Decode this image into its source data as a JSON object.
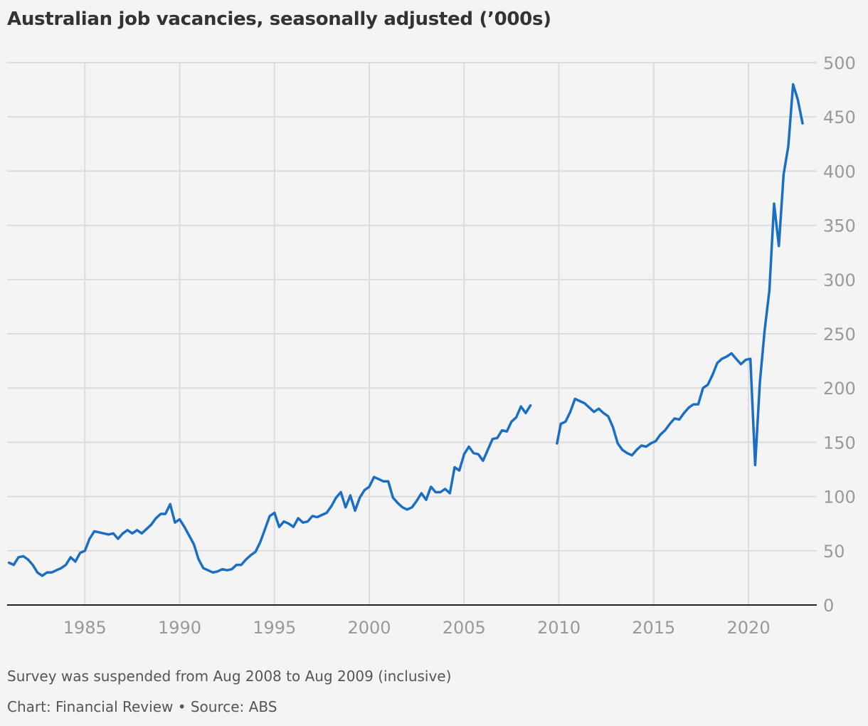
{
  "chart_data": {
    "type": "line",
    "title": "Australian job vacancies, seasonally adjusted (’000s)",
    "ylim": [
      0,
      500
    ],
    "xlim": [
      1980.9,
      2023.6
    ],
    "y_ticks": [
      "0",
      "50",
      "100",
      "150",
      "200",
      "250",
      "300",
      "350",
      "400",
      "450",
      "500"
    ],
    "x_ticks": [
      "1985",
      "1990",
      "1995",
      "2000",
      "2005",
      "2010",
      "2015",
      "2020"
    ],
    "grid": true,
    "series": [
      {
        "color": "#1a6fc4",
        "segments": [
          [
            [
              1981.0,
              39
            ],
            [
              1981.25,
              37
            ],
            [
              1981.5,
              44
            ],
            [
              1981.75,
              45
            ],
            [
              1982.0,
              42
            ],
            [
              1982.25,
              37
            ],
            [
              1982.5,
              30
            ],
            [
              1982.75,
              27
            ],
            [
              1983.0,
              30
            ],
            [
              1983.25,
              30
            ],
            [
              1983.5,
              32
            ],
            [
              1983.75,
              34
            ],
            [
              1984.0,
              37
            ],
            [
              1984.25,
              44
            ],
            [
              1984.5,
              40
            ],
            [
              1984.75,
              48
            ],
            [
              1985.0,
              50
            ],
            [
              1985.25,
              61
            ],
            [
              1985.5,
              68
            ],
            [
              1985.75,
              67
            ],
            [
              1986.0,
              66
            ],
            [
              1986.25,
              65
            ],
            [
              1986.5,
              66
            ],
            [
              1986.75,
              61
            ],
            [
              1987.0,
              66
            ],
            [
              1987.25,
              69
            ],
            [
              1987.5,
              66
            ],
            [
              1987.75,
              69
            ],
            [
              1988.0,
              66
            ],
            [
              1988.25,
              70
            ],
            [
              1988.5,
              74
            ],
            [
              1988.75,
              80
            ],
            [
              1989.0,
              84
            ],
            [
              1989.25,
              84
            ],
            [
              1989.5,
              93
            ],
            [
              1989.75,
              76
            ],
            [
              1990.0,
              79
            ],
            [
              1990.25,
              72
            ],
            [
              1990.5,
              64
            ],
            [
              1990.75,
              56
            ],
            [
              1991.0,
              42
            ],
            [
              1991.25,
              34
            ],
            [
              1991.5,
              32
            ],
            [
              1991.75,
              30
            ],
            [
              1992.0,
              31
            ],
            [
              1992.25,
              33
            ],
            [
              1992.5,
              32
            ],
            [
              1992.75,
              33
            ],
            [
              1993.0,
              37
            ],
            [
              1993.25,
              37
            ],
            [
              1993.5,
              42
            ],
            [
              1993.75,
              46
            ],
            [
              1994.0,
              49
            ],
            [
              1994.25,
              58
            ],
            [
              1994.5,
              70
            ],
            [
              1994.75,
              82
            ],
            [
              1995.0,
              85
            ],
            [
              1995.25,
              72
            ],
            [
              1995.5,
              77
            ],
            [
              1995.75,
              75
            ],
            [
              1996.0,
              72
            ],
            [
              1996.25,
              80
            ],
            [
              1996.5,
              76
            ],
            [
              1996.75,
              77
            ],
            [
              1997.0,
              82
            ],
            [
              1997.25,
              81
            ],
            [
              1997.5,
              83
            ],
            [
              1997.75,
              85
            ],
            [
              1998.0,
              91
            ],
            [
              1998.25,
              99
            ],
            [
              1998.5,
              104
            ],
            [
              1998.75,
              90
            ],
            [
              1999.0,
              101
            ],
            [
              1999.25,
              87
            ],
            [
              1999.5,
              99
            ],
            [
              1999.75,
              106
            ],
            [
              2000.0,
              109
            ],
            [
              2000.25,
              118
            ],
            [
              2000.5,
              116
            ],
            [
              2000.75,
              114
            ],
            [
              2001.0,
              114
            ],
            [
              2001.25,
              99
            ],
            [
              2001.5,
              94
            ],
            [
              2001.75,
              90
            ],
            [
              2002.0,
              88
            ],
            [
              2002.25,
              90
            ],
            [
              2002.5,
              96
            ],
            [
              2002.75,
              103
            ],
            [
              2003.0,
              97
            ],
            [
              2003.25,
              109
            ],
            [
              2003.5,
              104
            ],
            [
              2003.75,
              104
            ],
            [
              2004.0,
              107
            ],
            [
              2004.25,
              103
            ],
            [
              2004.5,
              127
            ],
            [
              2004.75,
              124
            ],
            [
              2005.0,
              139
            ],
            [
              2005.25,
              146
            ],
            [
              2005.5,
              140
            ],
            [
              2005.75,
              139
            ],
            [
              2006.0,
              133
            ],
            [
              2006.25,
              143
            ],
            [
              2006.5,
              153
            ],
            [
              2006.75,
              154
            ],
            [
              2007.0,
              161
            ],
            [
              2007.25,
              160
            ],
            [
              2007.5,
              169
            ],
            [
              2007.75,
              173
            ],
            [
              2008.0,
              183
            ],
            [
              2008.25,
              177
            ],
            [
              2008.5,
              184
            ]
          ],
          [
            [
              2009.9,
              149
            ],
            [
              2010.1,
              167
            ],
            [
              2010.35,
              169
            ],
            [
              2010.6,
              178
            ],
            [
              2010.85,
              190
            ],
            [
              2011.1,
              188
            ],
            [
              2011.35,
              186
            ],
            [
              2011.6,
              182
            ],
            [
              2011.85,
              178
            ],
            [
              2012.1,
              181
            ],
            [
              2012.35,
              177
            ],
            [
              2012.6,
              174
            ],
            [
              2012.85,
              164
            ],
            [
              2013.1,
              149
            ],
            [
              2013.35,
              143
            ],
            [
              2013.6,
              140
            ],
            [
              2013.85,
              138
            ],
            [
              2014.1,
              143
            ],
            [
              2014.35,
              147
            ],
            [
              2014.6,
              146
            ],
            [
              2014.85,
              149
            ],
            [
              2015.1,
              151
            ],
            [
              2015.35,
              157
            ],
            [
              2015.6,
              161
            ],
            [
              2015.85,
              167
            ],
            [
              2016.1,
              172
            ],
            [
              2016.35,
              171
            ],
            [
              2016.6,
              177
            ],
            [
              2016.85,
              182
            ],
            [
              2017.1,
              185
            ],
            [
              2017.35,
              185
            ],
            [
              2017.6,
              200
            ],
            [
              2017.85,
              203
            ],
            [
              2018.1,
              212
            ],
            [
              2018.35,
              223
            ],
            [
              2018.6,
              227
            ],
            [
              2018.85,
              229
            ],
            [
              2019.1,
              232
            ],
            [
              2019.35,
              227
            ],
            [
              2019.6,
              222
            ],
            [
              2019.85,
              226
            ],
            [
              2020.1,
              227
            ],
            [
              2020.35,
              129
            ],
            [
              2020.6,
              205
            ],
            [
              2020.85,
              253
            ],
            [
              2021.1,
              290
            ],
            [
              2021.35,
              370
            ],
            [
              2021.6,
              331
            ],
            [
              2021.85,
              397
            ],
            [
              2022.1,
              423
            ],
            [
              2022.35,
              480
            ],
            [
              2022.6,
              466
            ],
            [
              2022.85,
              444
            ]
          ]
        ]
      }
    ]
  },
  "notes": {
    "line1": "Survey was suspended from Aug 2008 to Aug 2009 (inclusive)",
    "line2": "Chart: Financial Review • Source: ABS"
  }
}
